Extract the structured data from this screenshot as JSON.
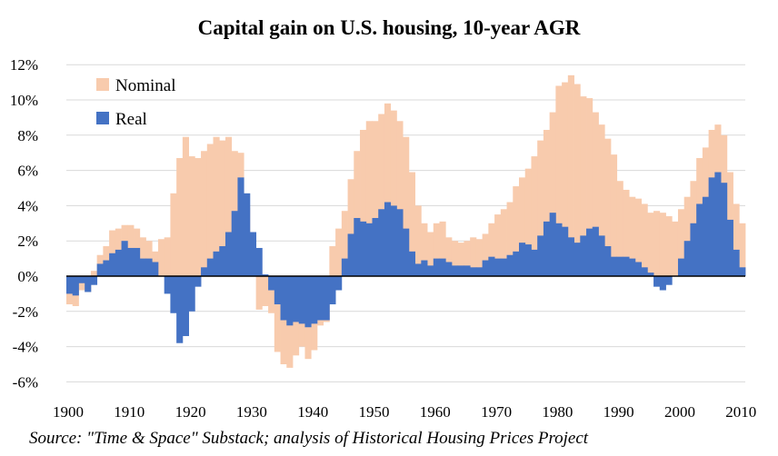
{
  "chart_data": {
    "type": "bar",
    "title": "Capital gain on U.S. housing, 10-year AGR",
    "source": "Source: \"Time & Space\" Substack; analysis of Historical Housing Prices Project",
    "x": [
      1900,
      1901,
      1902,
      1903,
      1904,
      1905,
      1906,
      1907,
      1908,
      1909,
      1910,
      1911,
      1912,
      1913,
      1914,
      1915,
      1916,
      1917,
      1918,
      1919,
      1920,
      1921,
      1922,
      1923,
      1924,
      1925,
      1926,
      1927,
      1928,
      1929,
      1930,
      1931,
      1932,
      1933,
      1934,
      1935,
      1936,
      1937,
      1938,
      1939,
      1940,
      1941,
      1942,
      1943,
      1944,
      1945,
      1946,
      1947,
      1948,
      1949,
      1950,
      1951,
      1952,
      1953,
      1954,
      1955,
      1956,
      1957,
      1958,
      1959,
      1960,
      1961,
      1962,
      1963,
      1964,
      1965,
      1966,
      1967,
      1968,
      1969,
      1970,
      1971,
      1972,
      1973,
      1974,
      1975,
      1976,
      1977,
      1978,
      1979,
      1980,
      1981,
      1982,
      1983,
      1984,
      1985,
      1986,
      1987,
      1988,
      1989,
      1990,
      1991,
      1992,
      1993,
      1994,
      1995,
      1996,
      1997,
      1998,
      1999,
      2000,
      2001,
      2002,
      2003,
      2004,
      2005,
      2006,
      2007,
      2008,
      2009,
      2010
    ],
    "series": [
      {
        "name": "Nominal",
        "color": "#f8cbad",
        "values": [
          -1.6,
          -1.7,
          -0.8,
          -0.9,
          0.3,
          1.2,
          1.7,
          2.6,
          2.7,
          2.9,
          2.9,
          2.7,
          2.2,
          2.0,
          1.4,
          2.1,
          2.2,
          4.7,
          6.7,
          7.9,
          6.8,
          6.7,
          7.1,
          7.5,
          7.9,
          7.7,
          7.9,
          7.1,
          7.0,
          3.9,
          0.6,
          -1.9,
          -1.7,
          -2.1,
          -4.3,
          -5.0,
          -5.2,
          -4.5,
          -4.0,
          -4.7,
          -4.2,
          -2.8,
          -2.6,
          1.7,
          2.7,
          3.7,
          5.5,
          7.1,
          8.3,
          8.8,
          8.8,
          9.2,
          9.8,
          9.4,
          8.8,
          7.9,
          5.9,
          4.0,
          3.0,
          2.5,
          3.0,
          3.1,
          2.2,
          2.0,
          1.9,
          2.0,
          2.2,
          2.1,
          2.4,
          3.0,
          3.5,
          3.8,
          4.2,
          5.1,
          5.6,
          6.1,
          6.8,
          7.7,
          8.3,
          9.3,
          10.8,
          11.0,
          11.4,
          10.9,
          10.2,
          10.1,
          9.3,
          8.6,
          7.8,
          6.9,
          5.4,
          4.9,
          4.5,
          4.4,
          4.1,
          3.6,
          3.7,
          3.6,
          3.4,
          3.1,
          3.8,
          4.5,
          5.4,
          6.7,
          7.3,
          8.3,
          8.6,
          8.0,
          5.9,
          4.1,
          3.0
        ]
      },
      {
        "name": "Real",
        "color": "#4472c4",
        "values": [
          -1.0,
          -1.1,
          -0.4,
          -0.9,
          -0.5,
          0.7,
          0.9,
          1.3,
          1.5,
          2.0,
          1.6,
          1.6,
          1.0,
          1.0,
          0.8,
          0.0,
          -1.0,
          -2.1,
          -3.8,
          -3.4,
          -2.0,
          -0.6,
          0.5,
          1.0,
          1.4,
          1.7,
          2.5,
          3.7,
          5.6,
          4.7,
          2.5,
          1.6,
          0.1,
          -0.8,
          -1.6,
          -2.5,
          -2.8,
          -2.6,
          -2.7,
          -2.9,
          -2.7,
          -2.5,
          -2.5,
          -1.6,
          -0.8,
          1.0,
          2.4,
          3.3,
          3.1,
          3.0,
          3.3,
          3.8,
          4.2,
          4.0,
          3.8,
          2.7,
          1.4,
          0.7,
          0.9,
          0.6,
          1.0,
          1.0,
          0.8,
          0.6,
          0.6,
          0.6,
          0.5,
          0.5,
          0.9,
          1.1,
          1.0,
          1.0,
          1.2,
          1.4,
          1.9,
          1.8,
          1.5,
          2.3,
          3.1,
          3.6,
          3.0,
          2.8,
          2.2,
          1.9,
          2.3,
          2.7,
          2.8,
          2.3,
          1.7,
          1.1,
          1.1,
          1.1,
          1.0,
          0.8,
          0.5,
          0.2,
          -0.6,
          -0.8,
          -0.5,
          0.0,
          1.0,
          2.0,
          3.0,
          4.1,
          4.5,
          5.6,
          5.9,
          5.3,
          3.2,
          1.5,
          0.5
        ]
      }
    ],
    "xticks": [
      1900,
      1910,
      1920,
      1930,
      1940,
      1950,
      1960,
      1970,
      1980,
      1990,
      2000,
      2010
    ],
    "yticks": [
      -6,
      -4,
      -2,
      0,
      2,
      4,
      6,
      8,
      10,
      12
    ],
    "ylim": [
      -6.5,
      12
    ],
    "xlim": [
      1900,
      2011
    ],
    "ytick_suffix": "%",
    "xlabel": "",
    "ylabel": "",
    "grid": true,
    "legend": {
      "position": "top-left",
      "entries": [
        "Nominal",
        "Real"
      ]
    }
  }
}
